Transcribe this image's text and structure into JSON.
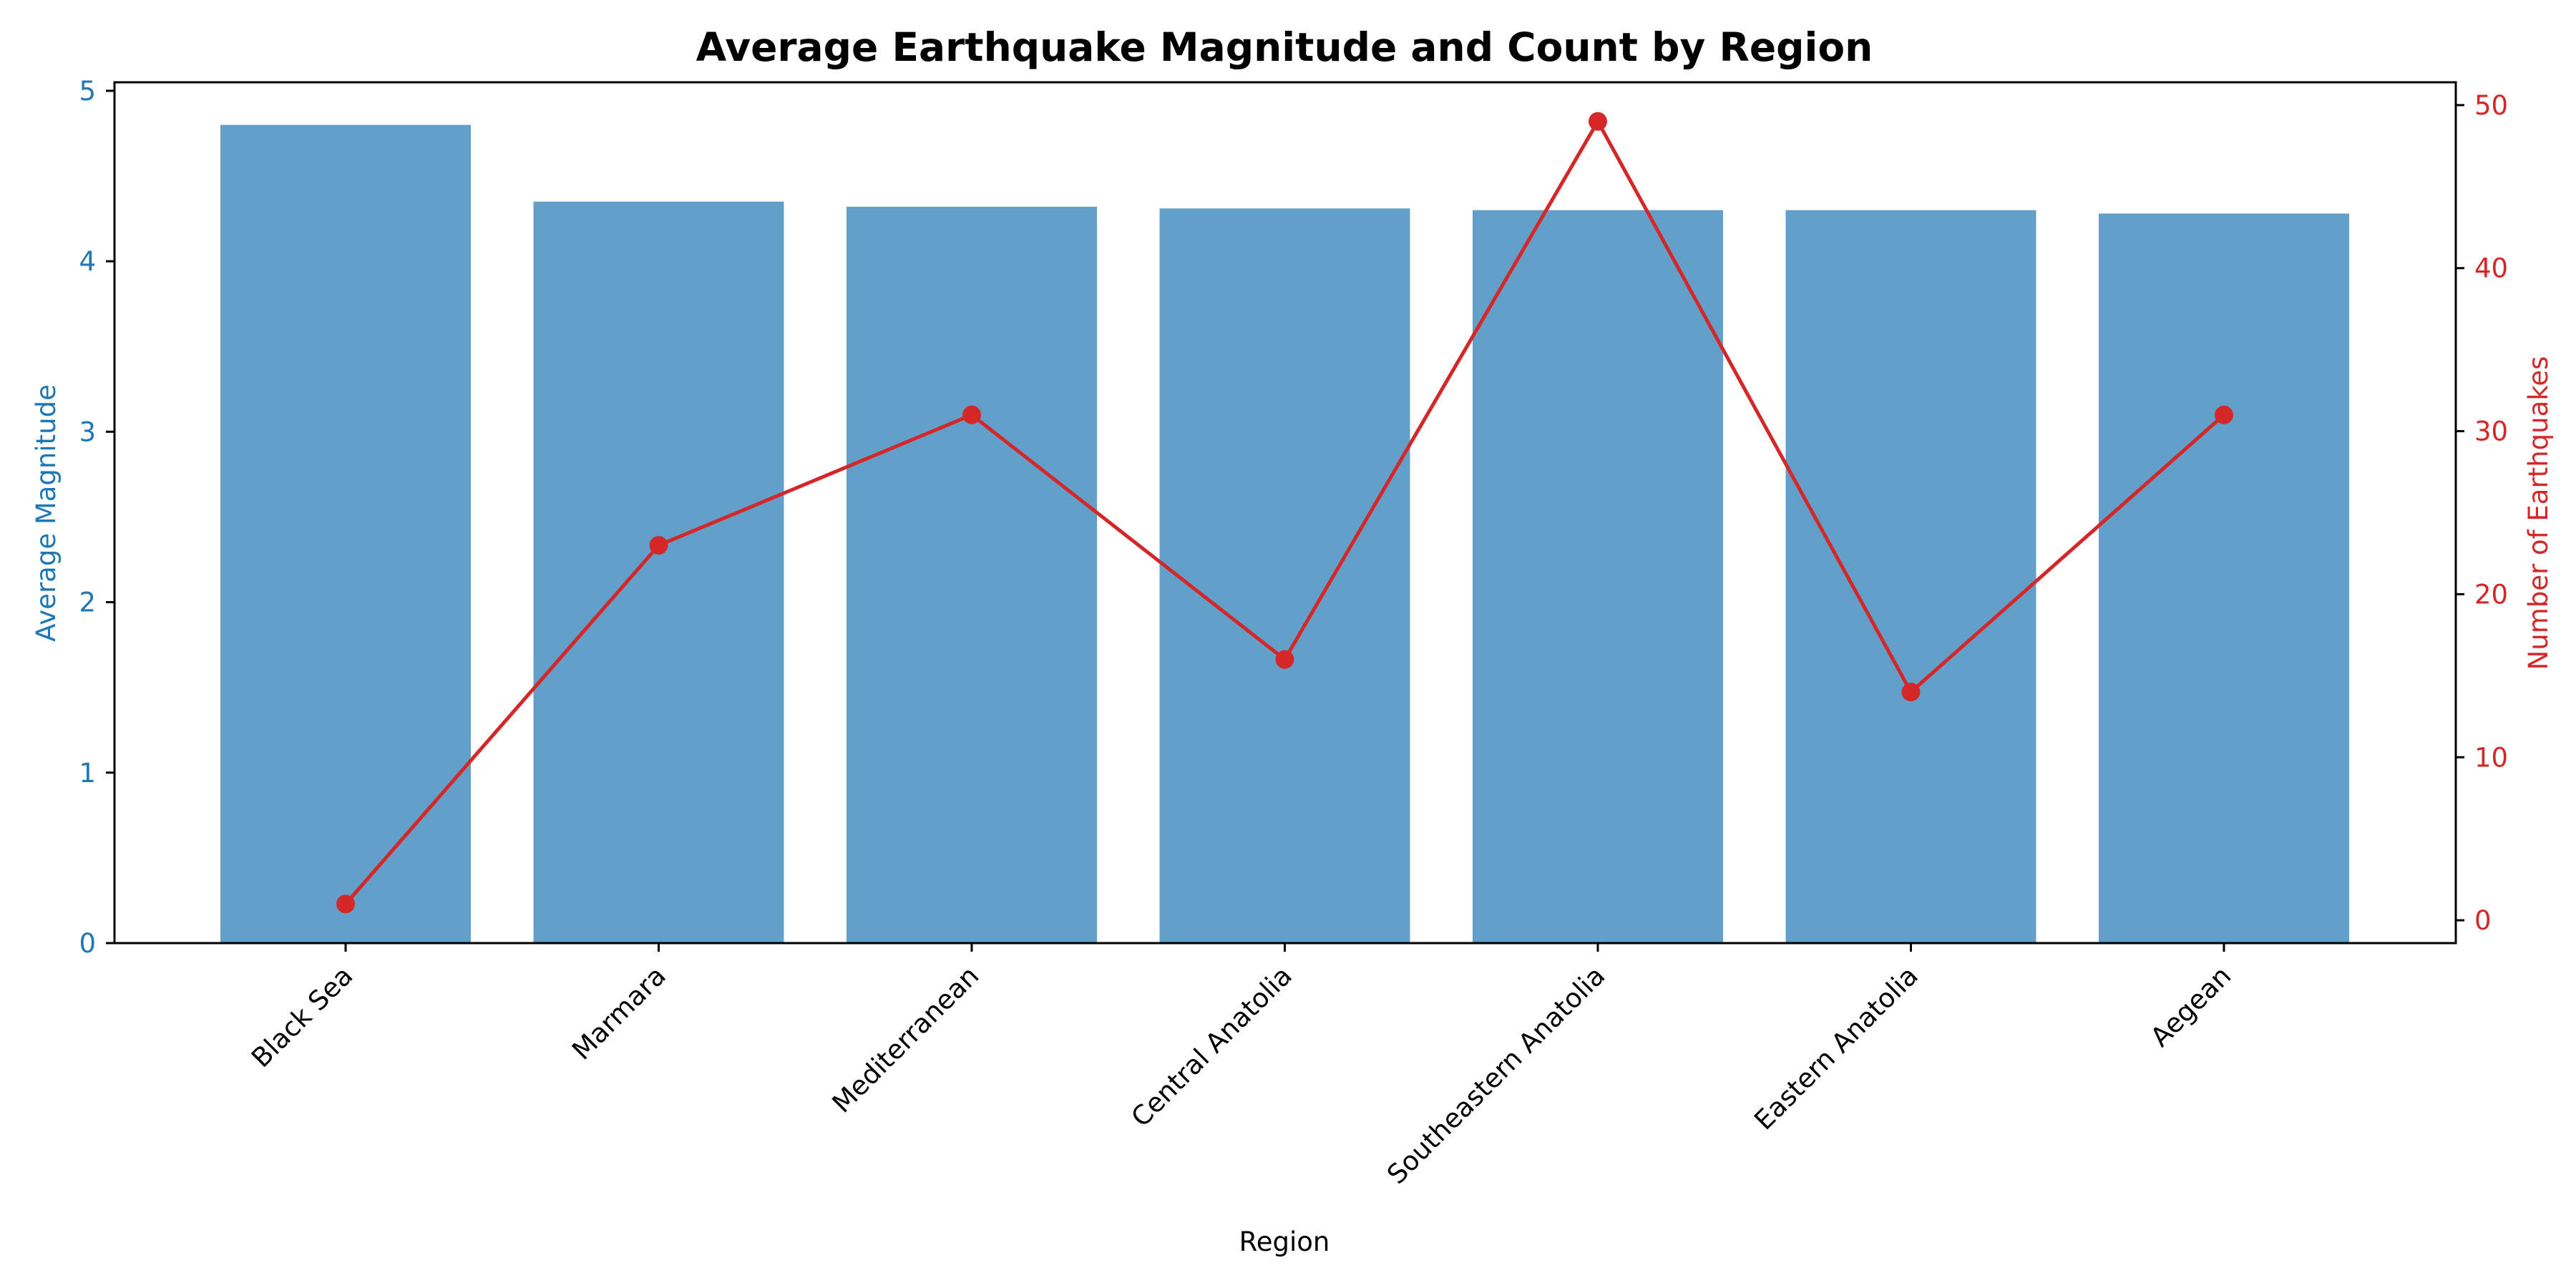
{
  "chart_data": {
    "type": "bar+line",
    "title": "Average Earthquake Magnitude and Count by Region",
    "xlabel": "Region",
    "ylabel_left": "Average Magnitude",
    "ylabel_right": "Number of Earthquakes",
    "categories": [
      "Black Sea",
      "Marmara",
      "Mediterranean",
      "Central Anatolia",
      "Southeastern Anatolia",
      "Eastern Anatolia",
      "Aegean"
    ],
    "series": [
      {
        "name": "Average Magnitude",
        "type": "bar",
        "axis": "left",
        "color": "#1f77b4",
        "opacity": 0.7,
        "values": [
          4.8,
          4.35,
          4.32,
          4.31,
          4.3,
          4.3,
          4.28
        ]
      },
      {
        "name": "Number of Earthquakes",
        "type": "line",
        "axis": "right",
        "color": "#d62728",
        "marker": "circle",
        "values": [
          1,
          23,
          31,
          16,
          49,
          14,
          31
        ]
      }
    ],
    "y_left": {
      "lim": [
        0,
        5.05
      ],
      "ticks": [
        0,
        1,
        2,
        3,
        4,
        5
      ],
      "color": "#1f77b4"
    },
    "y_right": {
      "lim": [
        -1.4,
        51.4
      ],
      "ticks": [
        0,
        10,
        20,
        30,
        40,
        50
      ],
      "color": "#d62728"
    },
    "x_tick_rotation": -45,
    "grid": false,
    "legend": "none"
  }
}
